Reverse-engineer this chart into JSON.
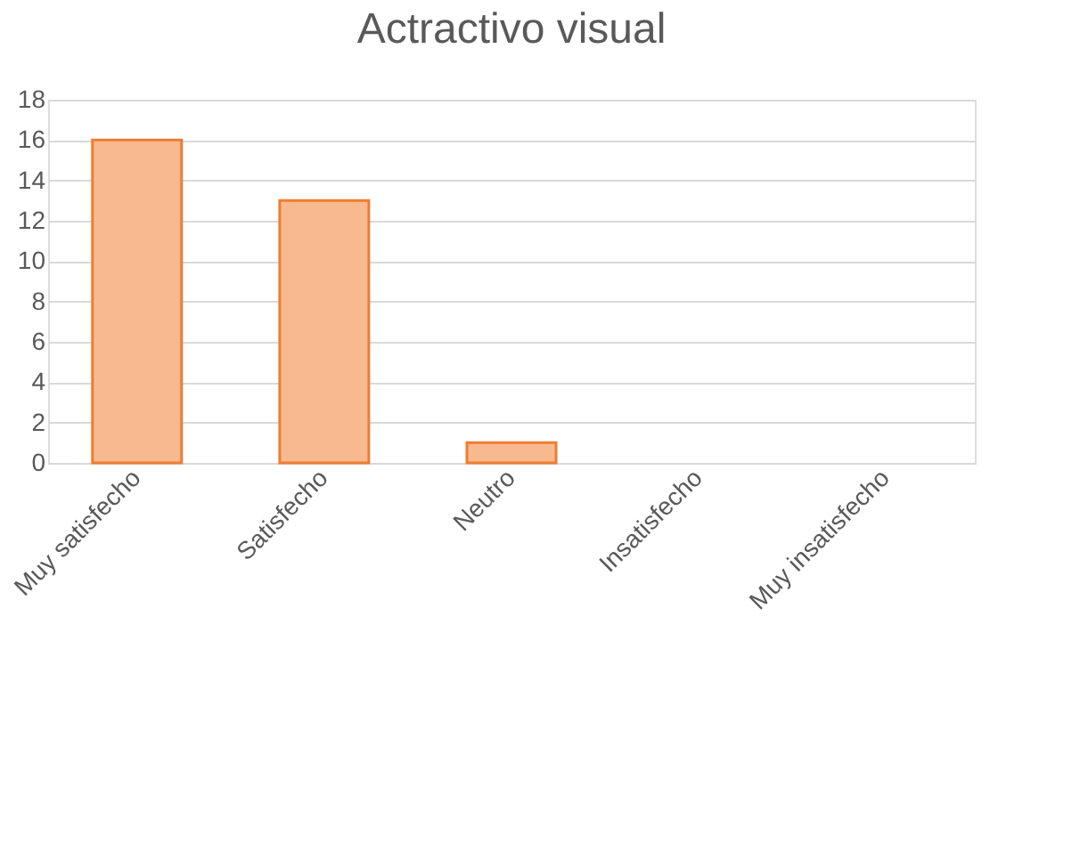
{
  "chart_data": {
    "type": "bar",
    "title": "Actractivo visual",
    "categories": [
      "Muy satisfecho",
      "Satisfecho",
      "Neutro",
      "Insatisfecho",
      "Muy insatisfecho"
    ],
    "values": [
      16,
      13,
      1,
      0,
      0
    ],
    "color": "#f9b98f",
    "ylim": [
      0,
      18
    ],
    "yticks": [
      0,
      2,
      4,
      6,
      8,
      10,
      12,
      14,
      16,
      18
    ],
    "grid": "y"
  }
}
